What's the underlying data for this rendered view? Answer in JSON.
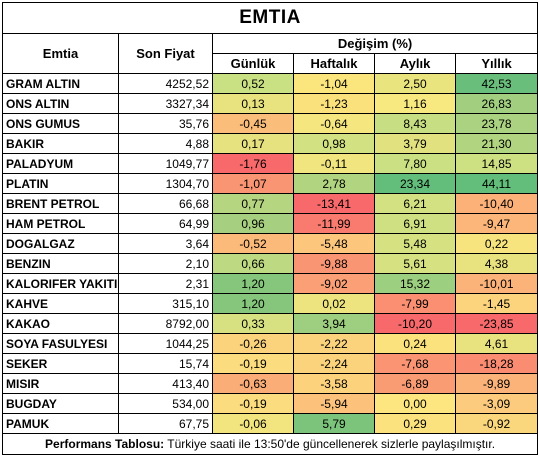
{
  "title": "EMTIA",
  "headers": {
    "name": "Emtia",
    "price": "Son Fiyat",
    "change": "Değişim (%)",
    "daily": "Günlük",
    "weekly": "Haftalık",
    "monthly": "Aylık",
    "yearly": "Yıllık"
  },
  "rows": [
    {
      "name": "GRAM ALTIN",
      "price": "4252,52",
      "daily": "0,52",
      "weekly": "-1,04",
      "monthly": "2,50",
      "yearly": "42,53",
      "colors": [
        "#c9e083",
        "#fbe67e",
        "#eae47f",
        "#6abe7b"
      ]
    },
    {
      "name": "ONS ALTIN",
      "price": "3327,34",
      "daily": "0,13",
      "weekly": "-1,23",
      "monthly": "1,16",
      "yearly": "26,83",
      "colors": [
        "#e9e37f",
        "#fbe17c",
        "#f8e880",
        "#a1cf7f"
      ]
    },
    {
      "name": "ONS GUMUS",
      "price": "35,76",
      "daily": "-0,45",
      "weekly": "-0,64",
      "monthly": "8,43",
      "yearly": "23,78",
      "colors": [
        "#fbbe7a",
        "#f6e67f",
        "#c7df82",
        "#abd280"
      ]
    },
    {
      "name": "BAKIR",
      "price": "4,88",
      "daily": "0,17",
      "weekly": "0,98",
      "monthly": "3,79",
      "yearly": "21,30",
      "colors": [
        "#e6e27f",
        "#d2e182",
        "#e1e27f",
        "#b1d480"
      ]
    },
    {
      "name": "PALADYUM",
      "price": "1049,77",
      "daily": "-1,76",
      "weekly": "-0,11",
      "monthly": "7,80",
      "yearly": "14,85",
      "colors": [
        "#f8696b",
        "#f1e57f",
        "#cbe082",
        "#cde082"
      ]
    },
    {
      "name": "PLATIN",
      "price": "1304,70",
      "daily": "-1,07",
      "weekly": "2,78",
      "monthly": "23,34",
      "yearly": "44,11",
      "colors": [
        "#fa9573",
        "#b0d47f",
        "#63be7b",
        "#63be7b"
      ]
    },
    {
      "name": "BRENT PETROL",
      "price": "66,68",
      "daily": "0,77",
      "weekly": "-13,41",
      "monthly": "6,21",
      "yearly": "-10,40",
      "colors": [
        "#b5d580",
        "#f8696b",
        "#d3e182",
        "#fcb179"
      ]
    },
    {
      "name": "HAM PETROL",
      "price": "64,99",
      "daily": "0,96",
      "weekly": "-11,99",
      "monthly": "6,91",
      "yearly": "-9,47",
      "colors": [
        "#a6d07f",
        "#f97a6e",
        "#cfe082",
        "#fcb679"
      ]
    },
    {
      "name": "DOGALGAZ",
      "price": "3,64",
      "daily": "-0,52",
      "weekly": "-5,48",
      "monthly": "5,48",
      "yearly": "0,22",
      "colors": [
        "#fcba7a",
        "#fcc77d",
        "#d6e182",
        "#f7e47f"
      ]
    },
    {
      "name": "BENZIN",
      "price": "2,10",
      "daily": "0,66",
      "weekly": "-9,88",
      "monthly": "5,61",
      "yearly": "4,38",
      "colors": [
        "#bdd981",
        "#fa9573",
        "#d6e182",
        "#e9e37f"
      ]
    },
    {
      "name": "KALORIFER YAKITI",
      "price": "2,31",
      "daily": "1,20",
      "weekly": "-9,02",
      "monthly": "15,32",
      "yearly": "-10,01",
      "colors": [
        "#85c67c",
        "#fba076",
        "#9ccf7f",
        "#fcb379"
      ]
    },
    {
      "name": "KAHVE",
      "price": "315,10",
      "daily": "1,20",
      "weekly": "0,02",
      "monthly": "-7,99",
      "yearly": "-1,45",
      "colors": [
        "#85c67c",
        "#ede47f",
        "#fa8f72",
        "#fbd47d"
      ]
    },
    {
      "name": "KAKAO",
      "price": "8792,00",
      "daily": "0,33",
      "weekly": "3,94",
      "monthly": "-10,20",
      "yearly": "-23,85",
      "colors": [
        "#d8e181",
        "#9ece7f",
        "#f8696b",
        "#f8696b"
      ]
    },
    {
      "name": "SOYA FASULYESI",
      "price": "1044,25",
      "daily": "-0,26",
      "weekly": "-2,22",
      "monthly": "0,24",
      "yearly": "4,61",
      "colors": [
        "#fbd37d",
        "#fbd37c",
        "#fbe27d",
        "#e8e37f"
      ]
    },
    {
      "name": "SEKER",
      "price": "15,74",
      "daily": "-0,19",
      "weekly": "-2,24",
      "monthly": "-7,68",
      "yearly": "-18,28",
      "colors": [
        "#fbdc7e",
        "#fbd37c",
        "#fa9473",
        "#f98c71"
      ]
    },
    {
      "name": "MISIR",
      "price": "413,40",
      "daily": "-0,63",
      "weekly": "-3,58",
      "monthly": "-6,89",
      "yearly": "-9,89",
      "colors": [
        "#fbad78",
        "#fcd27d",
        "#f99c74",
        "#fcb379"
      ]
    },
    {
      "name": "BUGDAY",
      "price": "534,00",
      "daily": "-0,19",
      "weekly": "-5,94",
      "monthly": "0,00",
      "yearly": "-3,09",
      "colors": [
        "#fbdc7e",
        "#fcc27c",
        "#fde57f",
        "#fccb7d"
      ]
    },
    {
      "name": "PAMUK",
      "price": "67,75",
      "daily": "-0,06",
      "weekly": "5,79",
      "monthly": "0,29",
      "yearly": "-0,92",
      "colors": [
        "#f2e57f",
        "#7cc47c",
        "#fbe27e",
        "#fad67d"
      ]
    }
  ],
  "footer": {
    "label": "Performans Tablosu:",
    "text": " Türkiye saati ile 13:50'de güncellenerek sizlerle paylaşılmıştır."
  }
}
